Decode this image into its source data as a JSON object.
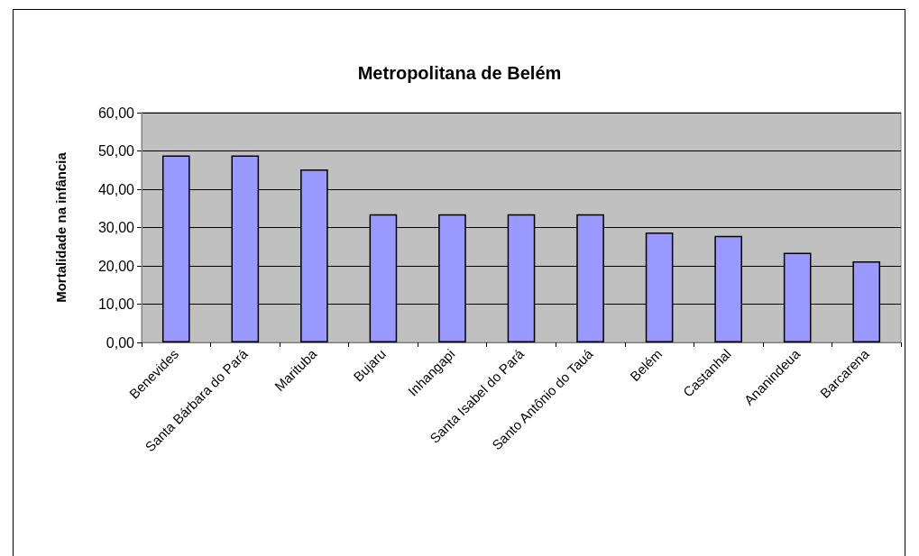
{
  "chart_data": {
    "type": "bar",
    "title": "Metropolitana de Belém",
    "ylabel": "Mortalidade na infância",
    "categories": [
      "Benevides",
      "Santa Bárbara do Pará",
      "Marituba",
      "Bujaru",
      "Inhangapi",
      "Santa Isabel do Pará",
      "Santo Antônio do Tauá",
      "Belém",
      "Castanhal",
      "Ananindeua",
      "Barcarena"
    ],
    "values": [
      48.8,
      48.8,
      45.2,
      33.5,
      33.5,
      33.5,
      33.5,
      28.7,
      27.8,
      23.4,
      21.2
    ],
    "color": "#9999ff",
    "ylim": [
      0,
      60
    ],
    "yticks": [
      {
        "value": 0,
        "label": "0,00"
      },
      {
        "value": 10,
        "label": "10,00"
      },
      {
        "value": 20,
        "label": "20,00"
      },
      {
        "value": 30,
        "label": "30,00"
      },
      {
        "value": 40,
        "label": "40,00"
      },
      {
        "value": 50,
        "label": "50,00"
      },
      {
        "value": 60,
        "label": "60,00"
      }
    ],
    "grid": "y"
  }
}
